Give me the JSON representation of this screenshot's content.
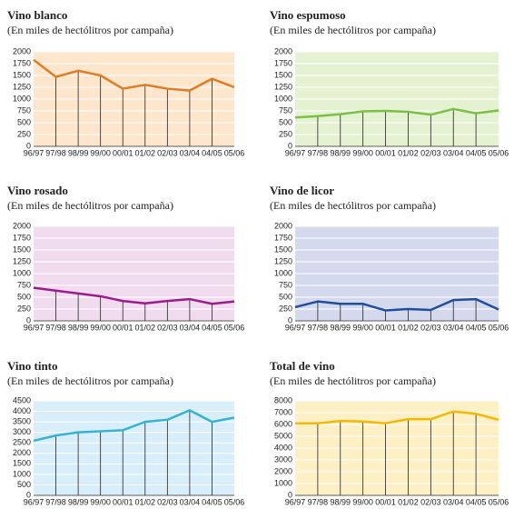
{
  "chart_data": [
    {
      "type": "line",
      "title": "Vino blanco",
      "subtitle": "(En miles de hectólitros por campaña)",
      "categories": [
        "96/97",
        "97/98",
        "98/99",
        "99/00",
        "00/01",
        "01/02",
        "02/03",
        "03/04",
        "04/05",
        "05/06"
      ],
      "values": [
        1830,
        1470,
        1600,
        1500,
        1220,
        1300,
        1220,
        1180,
        1430,
        1250
      ],
      "color": "#e07c22",
      "background": "#fde6cc",
      "ylim": [
        0,
        2000
      ],
      "yticks": [
        0,
        250,
        500,
        750,
        1000,
        1250,
        1500,
        1750,
        2000
      ],
      "grid": true
    },
    {
      "type": "line",
      "title": "Vino espumoso",
      "subtitle": "(En miles de hectólitros por campaña)",
      "categories": [
        "96/97",
        "97/98",
        "98/99",
        "99/00",
        "00/01",
        "01/02",
        "02/03",
        "03/04",
        "04/05",
        "05/06"
      ],
      "values": [
        610,
        640,
        680,
        740,
        750,
        730,
        670,
        790,
        700,
        760
      ],
      "color": "#7ac143",
      "background": "#e4f2d2",
      "ylim": [
        0,
        2000
      ],
      "yticks": [
        0,
        250,
        500,
        750,
        1000,
        1250,
        1500,
        1750,
        2000
      ],
      "grid": true
    },
    {
      "type": "line",
      "title": "Vino rosado",
      "subtitle": "(En miles de hectólitros por campaña)",
      "categories": [
        "96/97",
        "97/98",
        "98/99",
        "99/00",
        "00/01",
        "01/02",
        "02/03",
        "03/04",
        "04/05",
        "05/06"
      ],
      "values": [
        700,
        640,
        580,
        520,
        420,
        370,
        420,
        460,
        360,
        410
      ],
      "color": "#9b1c8a",
      "background": "#f1dcef",
      "ylim": [
        0,
        2000
      ],
      "yticks": [
        0,
        250,
        500,
        750,
        1000,
        1250,
        1500,
        1750,
        2000
      ],
      "grid": true
    },
    {
      "type": "line",
      "title": "Vino de licor",
      "subtitle": "(En miles de hectólitros por campaña)",
      "categories": [
        "96/97",
        "97/98",
        "98/99",
        "99/00",
        "00/01",
        "01/02",
        "02/03",
        "03/04",
        "04/05",
        "05/06"
      ],
      "values": [
        290,
        410,
        360,
        360,
        220,
        250,
        230,
        440,
        460,
        240
      ],
      "color": "#1f4f9c",
      "background": "#d5d9ee",
      "ylim": [
        0,
        2000
      ],
      "yticks": [
        0,
        250,
        500,
        750,
        1000,
        1250,
        1500,
        1750,
        2000
      ],
      "grid": true
    },
    {
      "type": "line",
      "title": "Vino tinto",
      "subtitle": "(En miles de hectólitros por campaña)",
      "categories": [
        "96/97",
        "97/98",
        "98/99",
        "99/00",
        "00/01",
        "01/02",
        "02/03",
        "03/04",
        "04/05",
        "05/06"
      ],
      "values": [
        2600,
        2850,
        3000,
        3050,
        3100,
        3500,
        3600,
        4050,
        3500,
        3700
      ],
      "color": "#35b3d4",
      "background": "#d8eefa",
      "ylim": [
        0,
        4500
      ],
      "yticks": [
        0,
        500,
        1000,
        1500,
        2000,
        2500,
        3000,
        3500,
        4000,
        4500
      ],
      "grid": true
    },
    {
      "type": "line",
      "title": "Total de vino",
      "subtitle": "(En miles de hectólitros por campaña)",
      "categories": [
        "96/97",
        "97/98",
        "98/99",
        "99/00",
        "00/01",
        "01/02",
        "02/03",
        "03/04",
        "04/05",
        "05/06"
      ],
      "values": [
        6100,
        6100,
        6300,
        6250,
        6100,
        6450,
        6450,
        7100,
        6900,
        6400
      ],
      "color": "#f5b800",
      "background": "#fdf0c4",
      "ylim": [
        0,
        8000
      ],
      "yticks": [
        0,
        1000,
        2000,
        3000,
        4000,
        5000,
        6000,
        7000,
        8000
      ],
      "grid": true
    }
  ]
}
